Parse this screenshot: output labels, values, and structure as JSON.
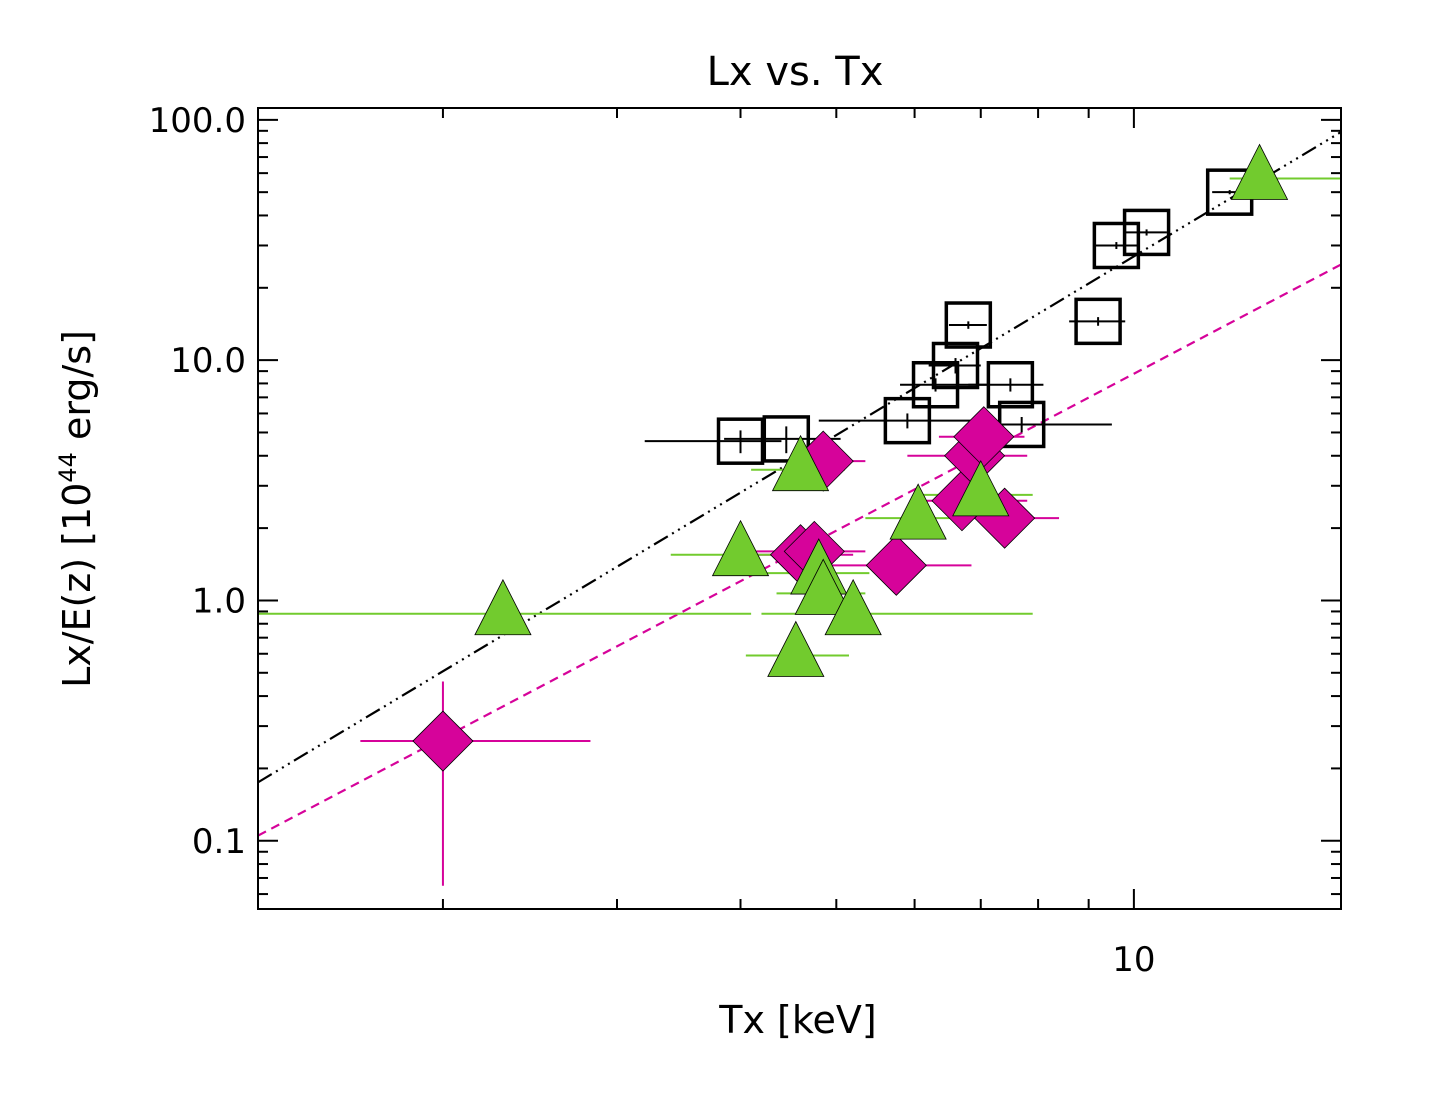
{
  "chart_data": {
    "type": "scatter",
    "title": "Lx vs. Tx",
    "xlabel": "Tx [keV]",
    "ylabel": {
      "main": "Lx/E(z) [10",
      "exponent": "44",
      "unit": " erg/s]"
    },
    "x_scale": "log",
    "y_scale": "log",
    "xlim": [
      1.3,
      16.2
    ],
    "ylim": [
      0.052,
      112
    ],
    "x_tick_labels": [
      {
        "value": 10,
        "label": "10"
      }
    ],
    "y_tick_labels": [
      {
        "value": 0.1,
        "label": "0.1"
      },
      {
        "value": 1,
        "label": "1.0"
      },
      {
        "value": 10,
        "label": "10.0"
      },
      {
        "value": 100,
        "label": "100.0"
      }
    ],
    "grid": false,
    "legend": "none",
    "colors": {
      "black": "#000000",
      "magenta": "#d6039a",
      "green": "#72cb2e"
    },
    "series": [
      {
        "marker": "open-square",
        "color": "#000000",
        "points": [
          {
            "x": 4.0,
            "y": 4.6,
            "xerr": [
              0.8,
              0.4
            ],
            "yerr": [
              0.5,
              0.5
            ]
          },
          {
            "x": 4.45,
            "y": 4.7,
            "xerr": [
              0.6,
              0.6
            ],
            "yerr": [
              0.6,
              0.6
            ]
          },
          {
            "x": 5.9,
            "y": 5.6,
            "xerr": [
              1.1,
              1.0
            ],
            "yerr": [
              0.4,
              0.4
            ]
          },
          {
            "x": 6.3,
            "y": 7.9,
            "xerr": [
              0.5,
              0.8
            ],
            "yerr": [
              0.5,
              0.5
            ]
          },
          {
            "x": 6.6,
            "y": 9.5,
            "xerr": [
              0.4,
              0.4
            ],
            "yerr": [
              0.7,
              0.7
            ]
          },
          {
            "x": 6.8,
            "y": 14.0,
            "xerr": [
              0.3,
              0.3
            ],
            "yerr": [
              0.5,
              0.5
            ]
          },
          {
            "x": 7.5,
            "y": 7.9,
            "xerr": [
              0.7,
              0.6
            ],
            "yerr": [
              0.5,
              0.5
            ]
          },
          {
            "x": 7.7,
            "y": 5.4,
            "xerr": [
              0.8,
              1.8
            ],
            "yerr": [
              0.4,
              0.4
            ]
          },
          {
            "x": 9.2,
            "y": 14.5,
            "xerr": [
              0.6,
              0.6
            ],
            "yerr": [
              0.6,
              0.6
            ]
          },
          {
            "x": 9.6,
            "y": 30.0,
            "xerr": [
              0.5,
              0.5
            ],
            "yerr": [
              1.0,
              1.0
            ]
          },
          {
            "x": 10.3,
            "y": 34.0,
            "xerr": [
              0.5,
              0.5
            ],
            "yerr": [
              1.0,
              1.0
            ]
          },
          {
            "x": 12.5,
            "y": 50.0,
            "xerr": [
              0.5,
              0.5
            ],
            "yerr": [
              1.0,
              1.0
            ]
          }
        ]
      },
      {
        "marker": "diamond",
        "color": "#d6039a",
        "points": [
          {
            "x": 2.0,
            "y": 0.26,
            "xerr": [
              0.35,
              0.82
            ],
            "yerr": [
              0.195,
              0.2
            ]
          },
          {
            "x": 4.6,
            "y": 1.55,
            "xerr": [
              0.6,
              0.6
            ],
            "yerr": [
              0.15,
              0.15
            ]
          },
          {
            "x": 4.75,
            "y": 1.6,
            "xerr": [
              0.6,
              0.6
            ],
            "yerr": [
              0.15,
              0.15
            ]
          },
          {
            "x": 4.85,
            "y": 3.8,
            "xerr": [
              0.5,
              0.5
            ],
            "yerr": [
              0.3,
              0.3
            ]
          },
          {
            "x": 5.75,
            "y": 1.4,
            "xerr": [
              0.9,
              1.1
            ],
            "yerr": [
              0.15,
              0.15
            ]
          },
          {
            "x": 6.7,
            "y": 2.6,
            "xerr": [
              0.7,
              1.1
            ],
            "yerr": [
              0.2,
              0.2
            ]
          },
          {
            "x": 6.9,
            "y": 4.0,
            "xerr": [
              1.0,
              0.9
            ],
            "yerr": [
              0.3,
              0.3
            ]
          },
          {
            "x": 7.05,
            "y": 4.8,
            "xerr": [
              0.7,
              0.7
            ],
            "yerr": [
              0.4,
              0.4
            ]
          },
          {
            "x": 7.4,
            "y": 2.2,
            "xerr": [
              0.8,
              1.0
            ],
            "yerr": [
              0.2,
              0.2
            ]
          }
        ]
      },
      {
        "marker": "triangle",
        "color": "#72cb2e",
        "points": [
          {
            "x": 2.3,
            "y": 0.88,
            "xerr": [
              1.0,
              1.8
            ],
            "yerr": [
              0.1,
              0.1
            ]
          },
          {
            "x": 4.0,
            "y": 1.55,
            "xerr": [
              0.6,
              0.6
            ],
            "yerr": [
              0.15,
              0.15
            ]
          },
          {
            "x": 4.55,
            "y": 0.59,
            "xerr": [
              0.5,
              0.6
            ],
            "yerr": [
              0.05,
              0.05
            ]
          },
          {
            "x": 4.6,
            "y": 3.5,
            "xerr": [
              0.5,
              0.5
            ],
            "yerr": [
              0.3,
              0.3
            ]
          },
          {
            "x": 4.8,
            "y": 1.3,
            "xerr": [
              0.6,
              0.6
            ],
            "yerr": [
              0.15,
              0.15
            ]
          },
          {
            "x": 4.85,
            "y": 1.07,
            "xerr": [
              0.5,
              0.5
            ],
            "yerr": [
              0.1,
              0.1
            ]
          },
          {
            "x": 5.2,
            "y": 0.88,
            "xerr": [
              1.0,
              2.7
            ],
            "yerr": [
              0.1,
              0.1
            ]
          },
          {
            "x": 6.05,
            "y": 2.2,
            "xerr": [
              0.7,
              0.8
            ],
            "yerr": [
              0.2,
              0.2
            ]
          },
          {
            "x": 7.0,
            "y": 2.75,
            "xerr": [
              1.0,
              0.9
            ],
            "yerr": [
              0.2,
              0.2
            ]
          },
          {
            "x": 13.4,
            "y": 57.0,
            "xerr": [
              0.9,
              2.8
            ],
            "yerr": [
              2.0,
              2.0
            ]
          }
        ]
      }
    ],
    "fit_lines": [
      {
        "style": "dash-dot-dot-dot",
        "color": "#000000",
        "points": [
          [
            1.3,
            0.175
          ],
          [
            16.2,
            89.0
          ]
        ]
      },
      {
        "style": "dashed",
        "color": "#d6039a",
        "points": [
          [
            1.3,
            0.105
          ],
          [
            16.2,
            25.0
          ]
        ]
      }
    ]
  }
}
